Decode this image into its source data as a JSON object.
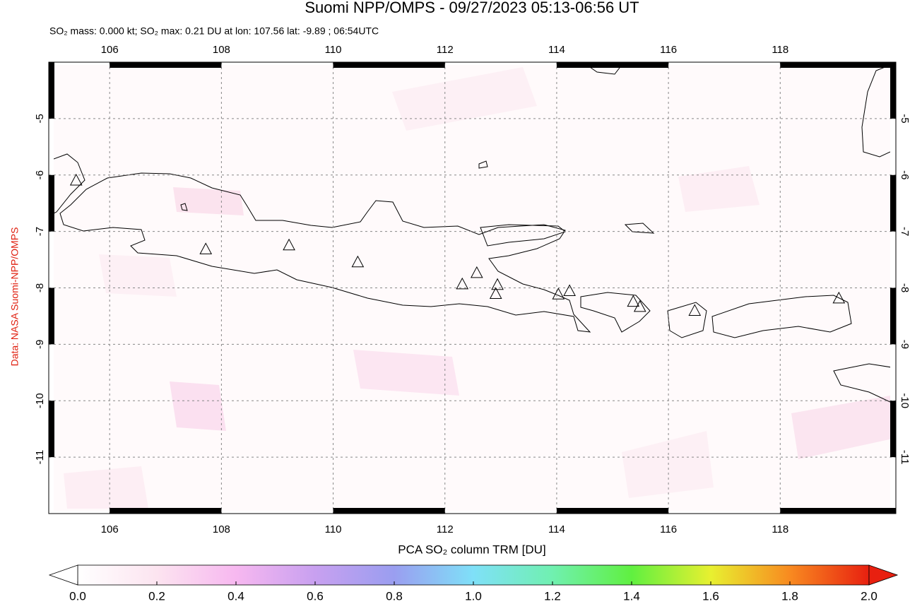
{
  "chart_data": {
    "type": "map",
    "title": "Suomi NPP/OMPS - 09/27/2023 05:13-06:56 UT",
    "subtitle": "SO₂ mass: 0.000 kt; SO₂ max: 0.21 DU at lon: 107.56 lat: -9.89 ; 06:54UTC",
    "credit": "Data: NASA Suomi-NPP/OMPS",
    "xlim": [
      104.91,
      120.07
    ],
    "ylim": [
      -12,
      -4
    ],
    "xticks": [
      106,
      108,
      110,
      112,
      114,
      116,
      118
    ],
    "yticks": [
      -5,
      -6,
      -7,
      -8,
      -9,
      -10,
      -11
    ],
    "grid": true,
    "volcanoes": {
      "lon": [
        105.4,
        107.72,
        109.21,
        110.44,
        112.31,
        112.57,
        112.94,
        112.91,
        114.03,
        114.23,
        115.37,
        115.49,
        116.47,
        119.05
      ],
      "lat": [
        -6.09,
        -7.31,
        -7.24,
        -7.54,
        -7.93,
        -7.73,
        -7.94,
        -8.1,
        -8.11,
        -8.05,
        -8.24,
        -8.33,
        -8.4,
        -8.18
      ]
    },
    "colorbar": {
      "label": "PCA SO₂ column TRM [DU]",
      "lim": [
        0,
        2
      ],
      "ticks": [
        {
          "value": 0,
          "label": "0.0"
        },
        0.2,
        0.4,
        0.6,
        0.8,
        {
          "value": 1,
          "label": "1.0"
        },
        1.2,
        1.4,
        1.6,
        1.8,
        {
          "value": 2,
          "label": "2.0"
        }
      ]
    }
  }
}
